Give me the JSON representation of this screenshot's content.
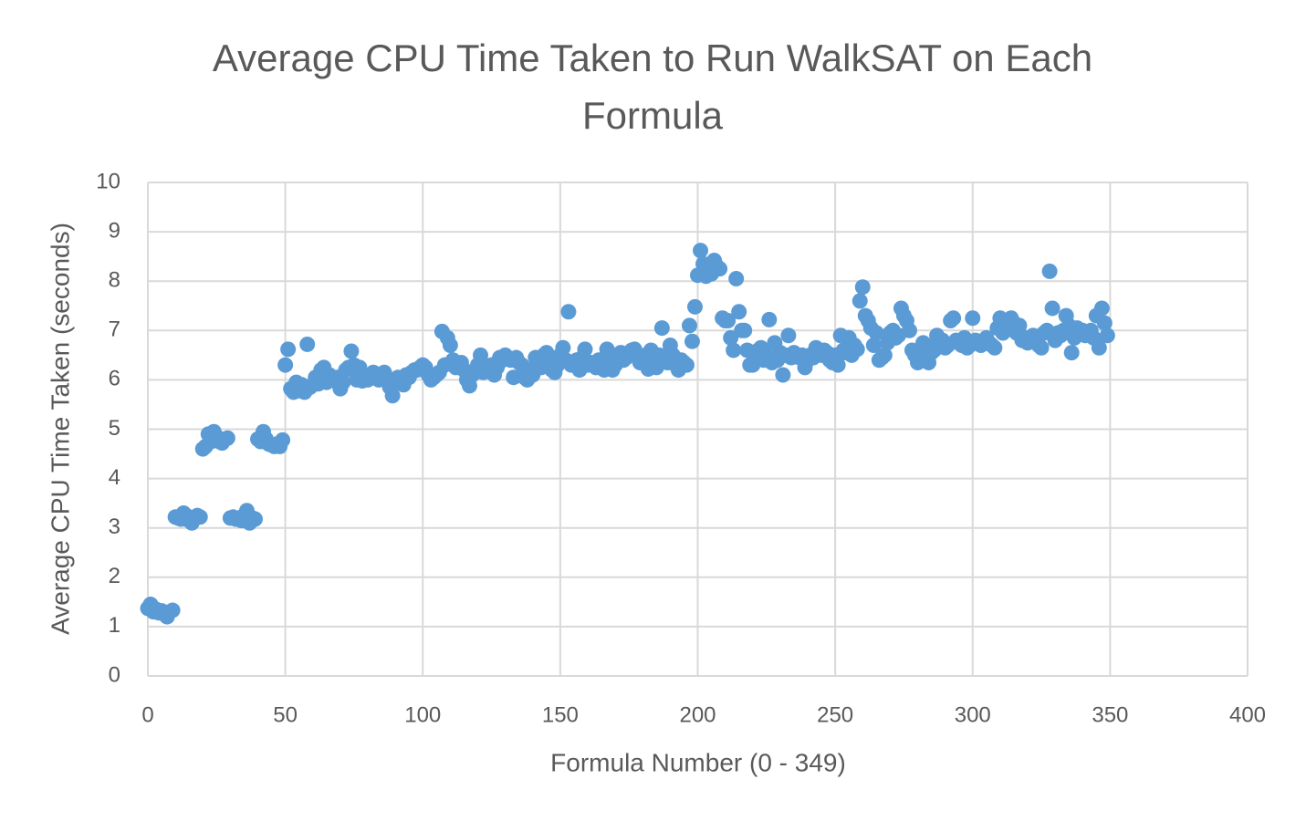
{
  "chart_data": {
    "type": "scatter",
    "title": "Average CPU Time Taken to Run WalkSAT on Each Formula",
    "xlabel": "Formula Number (0 - 349)",
    "ylabel": "Average CPU Time Taken (seconds)",
    "color": "#5b9bd5",
    "grid": true,
    "xlim": [
      0,
      400
    ],
    "xticks": [
      0,
      50,
      100,
      150,
      200,
      250,
      300,
      350,
      400
    ],
    "ylim": [
      0,
      10
    ],
    "yticks": [
      0,
      1,
      2,
      3,
      4,
      5,
      6,
      7,
      8,
      9,
      10
    ],
    "x": [
      0,
      1,
      2,
      3,
      4,
      5,
      6,
      7,
      8,
      9,
      10,
      11,
      12,
      13,
      14,
      15,
      16,
      17,
      18,
      19,
      20,
      21,
      22,
      23,
      24,
      25,
      26,
      27,
      28,
      29,
      30,
      31,
      32,
      33,
      34,
      35,
      36,
      37,
      38,
      39,
      40,
      41,
      42,
      43,
      44,
      45,
      46,
      47,
      48,
      49,
      50,
      51,
      52,
      53,
      54,
      55,
      56,
      57,
      58,
      59,
      60,
      61,
      62,
      63,
      64,
      65,
      66,
      67,
      68,
      69,
      70,
      71,
      72,
      73,
      74,
      75,
      76,
      77,
      78,
      79,
      80,
      81,
      82,
      83,
      84,
      85,
      86,
      87,
      88,
      89,
      90,
      91,
      92,
      93,
      94,
      95,
      96,
      97,
      98,
      99,
      100,
      101,
      102,
      103,
      104,
      105,
      106,
      107,
      108,
      109,
      110,
      111,
      112,
      113,
      114,
      115,
      116,
      117,
      118,
      119,
      120,
      121,
      122,
      123,
      124,
      125,
      126,
      127,
      128,
      129,
      130,
      131,
      132,
      133,
      134,
      135,
      136,
      137,
      138,
      139,
      140,
      141,
      142,
      143,
      144,
      145,
      146,
      147,
      148,
      149,
      150,
      151,
      152,
      153,
      154,
      155,
      156,
      157,
      158,
      159,
      160,
      161,
      162,
      163,
      164,
      165,
      166,
      167,
      168,
      169,
      170,
      171,
      172,
      173,
      174,
      175,
      176,
      177,
      178,
      179,
      180,
      181,
      182,
      183,
      184,
      185,
      186,
      187,
      188,
      189,
      190,
      191,
      192,
      193,
      194,
      195,
      196,
      197,
      198,
      199,
      200,
      201,
      202,
      203,
      204,
      205,
      206,
      207,
      208,
      209,
      210,
      211,
      212,
      213,
      214,
      215,
      216,
      217,
      218,
      219,
      220,
      221,
      222,
      223,
      224,
      225,
      226,
      227,
      228,
      229,
      230,
      231,
      232,
      233,
      234,
      235,
      236,
      237,
      238,
      239,
      240,
      241,
      242,
      243,
      244,
      245,
      246,
      247,
      248,
      249,
      250,
      251,
      252,
      253,
      254,
      255,
      256,
      257,
      258,
      259,
      260,
      261,
      262,
      263,
      264,
      265,
      266,
      267,
      268,
      269,
      270,
      271,
      272,
      273,
      274,
      275,
      276,
      277,
      278,
      279,
      280,
      281,
      282,
      283,
      284,
      285,
      286,
      287,
      288,
      289,
      290,
      291,
      292,
      293,
      294,
      295,
      296,
      297,
      298,
      299,
      300,
      301,
      302,
      303,
      304,
      305,
      306,
      307,
      308,
      309,
      310,
      311,
      312,
      313,
      314,
      315,
      316,
      317,
      318,
      319,
      320,
      321,
      322,
      323,
      324,
      325,
      326,
      327,
      328,
      329,
      330,
      331,
      332,
      333,
      334,
      335,
      336,
      337,
      338,
      339,
      340,
      341,
      342,
      343,
      344,
      345,
      346,
      347,
      348,
      349
    ],
    "values": [
      1.37,
      1.45,
      1.3,
      1.35,
      1.28,
      1.32,
      1.25,
      1.2,
      1.3,
      1.33,
      3.22,
      3.2,
      3.18,
      3.3,
      3.25,
      3.15,
      3.1,
      3.2,
      3.25,
      3.22,
      4.6,
      4.65,
      4.9,
      4.75,
      4.95,
      4.85,
      4.75,
      4.72,
      4.8,
      4.82,
      3.2,
      3.22,
      3.18,
      3.2,
      3.15,
      3.25,
      3.35,
      3.1,
      3.2,
      3.18,
      4.8,
      4.75,
      4.95,
      4.8,
      4.7,
      4.68,
      4.65,
      4.7,
      4.65,
      4.78,
      6.3,
      6.62,
      5.82,
      5.75,
      5.95,
      5.78,
      5.9,
      5.75,
      6.72,
      5.85,
      5.9,
      6.05,
      5.92,
      6.2,
      6.25,
      5.95,
      6.1,
      6.0,
      5.98,
      6.05,
      5.82,
      5.95,
      6.2,
      6.25,
      6.58,
      6.3,
      6.0,
      6.25,
      5.98,
      6.05,
      6.0,
      6.1,
      6.15,
      6.05,
      6.0,
      6.1,
      6.15,
      5.98,
      5.85,
      5.68,
      5.95,
      6.05,
      6.0,
      5.9,
      6.1,
      6.05,
      6.15,
      6.2,
      6.2,
      6.25,
      6.3,
      6.25,
      6.1,
      6.0,
      6.05,
      6.1,
      6.15,
      6.98,
      6.3,
      6.85,
      6.7,
      6.4,
      6.25,
      6.3,
      6.35,
      6.2,
      6.0,
      5.88,
      6.1,
      6.2,
      6.3,
      6.5,
      6.15,
      6.25,
      6.2,
      6.3,
      6.1,
      6.25,
      6.45,
      6.4,
      6.5,
      6.45,
      6.4,
      6.05,
      6.45,
      6.35,
      6.3,
      6.05,
      6.0,
      6.2,
      6.1,
      6.45,
      6.3,
      6.25,
      6.5,
      6.55,
      6.35,
      6.2,
      6.15,
      6.3,
      6.5,
      6.65,
      6.4,
      7.38,
      6.3,
      6.35,
      6.4,
      6.2,
      6.45,
      6.62,
      6.3,
      6.35,
      6.3,
      6.25,
      6.4,
      6.3,
      6.2,
      6.62,
      6.5,
      6.2,
      6.3,
      6.5,
      6.55,
      6.4,
      6.45,
      6.55,
      6.6,
      6.62,
      6.5,
      6.35,
      6.45,
      6.5,
      6.22,
      6.6,
      6.3,
      6.25,
      6.5,
      7.05,
      6.4,
      6.35,
      6.7,
      6.5,
      6.3,
      6.2,
      6.4,
      6.35,
      6.3,
      7.1,
      6.78,
      7.48,
      8.12,
      8.62,
      8.35,
      8.1,
      8.2,
      8.15,
      8.42,
      8.3,
      8.25,
      7.25,
      7.2,
      7.2,
      6.85,
      6.6,
      8.05,
      7.38,
      7.0,
      7.0,
      6.6,
      6.3,
      6.3,
      6.45,
      6.6,
      6.65,
      6.4,
      6.5,
      7.22,
      6.35,
      6.75,
      6.4,
      6.55,
      6.1,
      6.5,
      6.9,
      6.45,
      6.55,
      6.5,
      6.45,
      6.5,
      6.25,
      6.4,
      6.5,
      6.45,
      6.65,
      6.55,
      6.5,
      6.6,
      6.55,
      6.4,
      6.35,
      6.5,
      6.3,
      6.9,
      6.6,
      6.55,
      6.85,
      6.5,
      6.7,
      6.62,
      7.6,
      7.88,
      7.3,
      7.2,
      7.05,
      6.7,
      6.95,
      6.4,
      6.45,
      6.5,
      6.75,
      6.95,
      7.0,
      6.85,
      6.9,
      7.45,
      7.3,
      7.2,
      7.0,
      6.6,
      6.5,
      6.35,
      6.45,
      6.75,
      6.7,
      6.35,
      6.55,
      6.6,
      6.9,
      6.7,
      6.8,
      6.65,
      6.7,
      7.2,
      7.25,
      6.8,
      6.75,
      6.7,
      6.85,
      6.65,
      6.7,
      7.25,
      6.8,
      6.75,
      6.7,
      6.8,
      6.85,
      6.75,
      6.7,
      6.65,
      7.05,
      7.25,
      6.95,
      7.0,
      7.1,
      7.25,
      7.15,
      6.95,
      7.1,
      6.8,
      6.85,
      6.75,
      6.8,
      6.9,
      6.85,
      6.7,
      6.65,
      6.95,
      7.0,
      8.2,
      7.45,
      6.8,
      6.95,
      6.9,
      7.0,
      7.3,
      7.1,
      6.55,
      6.85,
      7.05,
      6.95,
      7.0,
      6.9,
      6.95,
      7.0,
      6.85,
      7.3,
      6.65,
      7.45,
      7.15,
      6.9
    ]
  }
}
